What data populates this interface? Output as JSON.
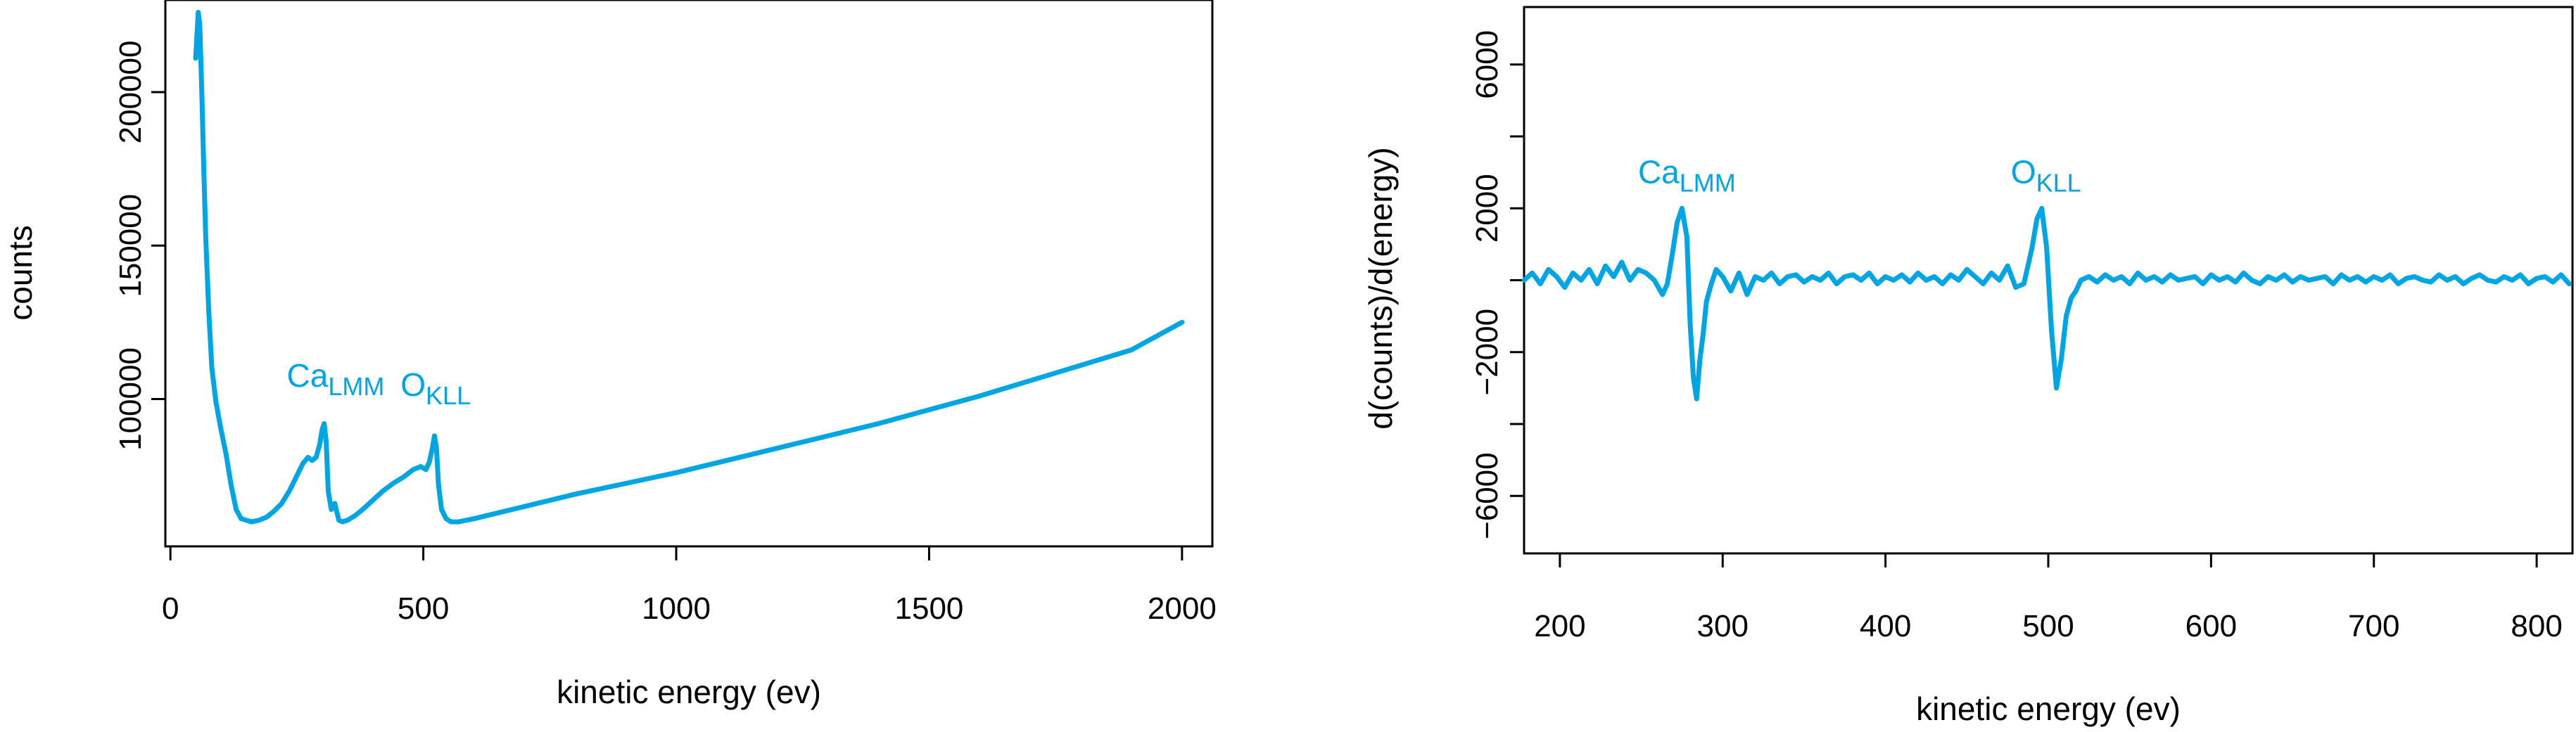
{
  "colors": {
    "series": "#00a6e4",
    "axis": "#000000"
  },
  "chart_data": [
    {
      "type": "line",
      "xlabel": "kinetic energy (ev)",
      "ylabel": "counts",
      "xlim": [
        -10,
        2060
      ],
      "ylim": [
        52000,
        230000
      ],
      "xticks": [
        0,
        500,
        1000,
        1500,
        2000
      ],
      "xtick_labels": [
        "0",
        "500",
        "1000",
        "1500",
        "2000"
      ],
      "yticks": [
        100000,
        150000,
        200000
      ],
      "ytick_labels": [
        "100000",
        "150000",
        "200000"
      ],
      "grid": false,
      "annotations": [
        {
          "main": "Ca",
          "sub": "LMM",
          "x": 230,
          "y": 104000
        },
        {
          "main": "O",
          "sub": "KLL",
          "x": 455,
          "y": 101000
        }
      ],
      "series": [
        {
          "x": [
            50,
            55,
            58,
            62,
            66,
            70,
            76,
            82,
            90,
            100,
            110,
            120,
            130,
            140,
            150,
            160,
            175,
            190,
            205,
            220,
            235,
            250,
            262,
            272,
            280,
            288,
            295,
            300,
            304,
            308,
            312,
            318,
            325,
            333,
            340,
            350,
            365,
            380,
            400,
            420,
            440,
            460,
            480,
            495,
            505,
            512,
            518,
            522,
            526,
            530,
            536,
            545,
            555,
            570,
            600,
            700,
            800,
            900,
            1000,
            1100,
            1200,
            1300,
            1400,
            1500,
            1600,
            1700,
            1800,
            1900,
            2000
          ],
          "y": [
            211000,
            226000,
            222000,
            200000,
            175000,
            152000,
            128000,
            110000,
            99000,
            90000,
            82000,
            72000,
            64000,
            61000,
            60500,
            60000,
            60500,
            61500,
            63500,
            66000,
            70000,
            75000,
            79000,
            81000,
            80000,
            81000,
            85000,
            90000,
            92000,
            86000,
            70000,
            64000,
            66000,
            60500,
            60000,
            60500,
            62000,
            64000,
            67000,
            70000,
            72500,
            74500,
            77000,
            78000,
            77000,
            79500,
            84000,
            88000,
            84000,
            72000,
            64000,
            61000,
            60000,
            60000,
            61000,
            65000,
            69000,
            72500,
            76000,
            80000,
            84000,
            88000,
            92000,
            96500,
            101000,
            106000,
            111000,
            116000,
            125000
          ]
        }
      ]
    },
    {
      "type": "line",
      "xlabel": "kinetic energy (ev)",
      "ylabel": "d(counts)/d(energy)",
      "xlim": [
        178,
        822
      ],
      "ylim": [
        -7600,
        7600
      ],
      "xticks": [
        200,
        300,
        400,
        500,
        600,
        700,
        800
      ],
      "xtick_labels": [
        "200",
        "300",
        "400",
        "500",
        "600",
        "700",
        "800"
      ],
      "yticks": [
        -6000,
        -4000,
        -2000,
        0,
        2000,
        4000,
        6000
      ],
      "ytick_labels": [
        "−6000",
        "",
        "−2000",
        "",
        "2000",
        "",
        "6000"
      ],
      "grid": false,
      "annotations": [
        {
          "main": "Ca",
          "sub": "LMM",
          "x": 248,
          "y": 2700
        },
        {
          "main": "O",
          "sub": "KLL",
          "x": 477,
          "y": 2700
        }
      ],
      "series": [
        {
          "x": [
            178,
            183,
            188,
            193,
            198,
            203,
            208,
            213,
            218,
            223,
            228,
            233,
            238,
            243,
            248,
            253,
            258,
            263,
            266,
            269,
            272,
            275,
            278,
            280,
            282,
            284,
            286,
            288,
            290,
            293,
            296,
            300,
            305,
            310,
            315,
            320,
            325,
            330,
            335,
            340,
            345,
            350,
            355,
            360,
            365,
            370,
            375,
            380,
            385,
            390,
            395,
            400,
            405,
            410,
            415,
            420,
            425,
            430,
            435,
            440,
            445,
            450,
            455,
            460,
            465,
            470,
            475,
            480,
            485,
            490,
            493,
            496,
            499,
            502,
            505,
            508,
            511,
            514,
            517,
            520,
            525,
            530,
            535,
            540,
            545,
            550,
            555,
            560,
            565,
            570,
            575,
            580,
            585,
            590,
            595,
            600,
            605,
            610,
            615,
            620,
            625,
            630,
            635,
            640,
            645,
            650,
            655,
            660,
            665,
            670,
            675,
            680,
            685,
            690,
            695,
            700,
            705,
            710,
            715,
            720,
            725,
            730,
            735,
            740,
            745,
            750,
            755,
            760,
            765,
            770,
            775,
            780,
            785,
            790,
            795,
            800,
            805,
            810,
            815,
            820
          ],
          "y": [
            0,
            200,
            -100,
            300,
            100,
            -200,
            200,
            0,
            300,
            -100,
            400,
            100,
            500,
            0,
            300,
            200,
            0,
            -400,
            -100,
            700,
            1600,
            2000,
            1200,
            -1200,
            -2700,
            -3300,
            -2200,
            -1500,
            -600,
            -100,
            300,
            100,
            -300,
            200,
            -400,
            100,
            0,
            200,
            -100,
            100,
            150,
            -50,
            100,
            0,
            200,
            -100,
            100,
            150,
            0,
            200,
            -100,
            100,
            0,
            150,
            -50,
            200,
            0,
            100,
            -100,
            150,
            0,
            300,
            100,
            -100,
            200,
            0,
            400,
            -200,
            -100,
            900,
            1700,
            2000,
            900,
            -1400,
            -3000,
            -2200,
            -1000,
            -500,
            -300,
            0,
            100,
            -50,
            150,
            0,
            100,
            -100,
            200,
            0,
            100,
            -50,
            150,
            0,
            50,
            100,
            -100,
            150,
            0,
            100,
            -50,
            200,
            0,
            -100,
            100,
            0,
            150,
            -50,
            100,
            0,
            50,
            100,
            -100,
            150,
            0,
            100,
            -50,
            100,
            0,
            150,
            -100,
            50,
            100,
            0,
            -50,
            150,
            0,
            100,
            -100,
            50,
            150,
            0,
            -50,
            100,
            0,
            150,
            -100,
            50,
            100,
            -50,
            150,
            -100
          ]
        }
      ]
    }
  ]
}
